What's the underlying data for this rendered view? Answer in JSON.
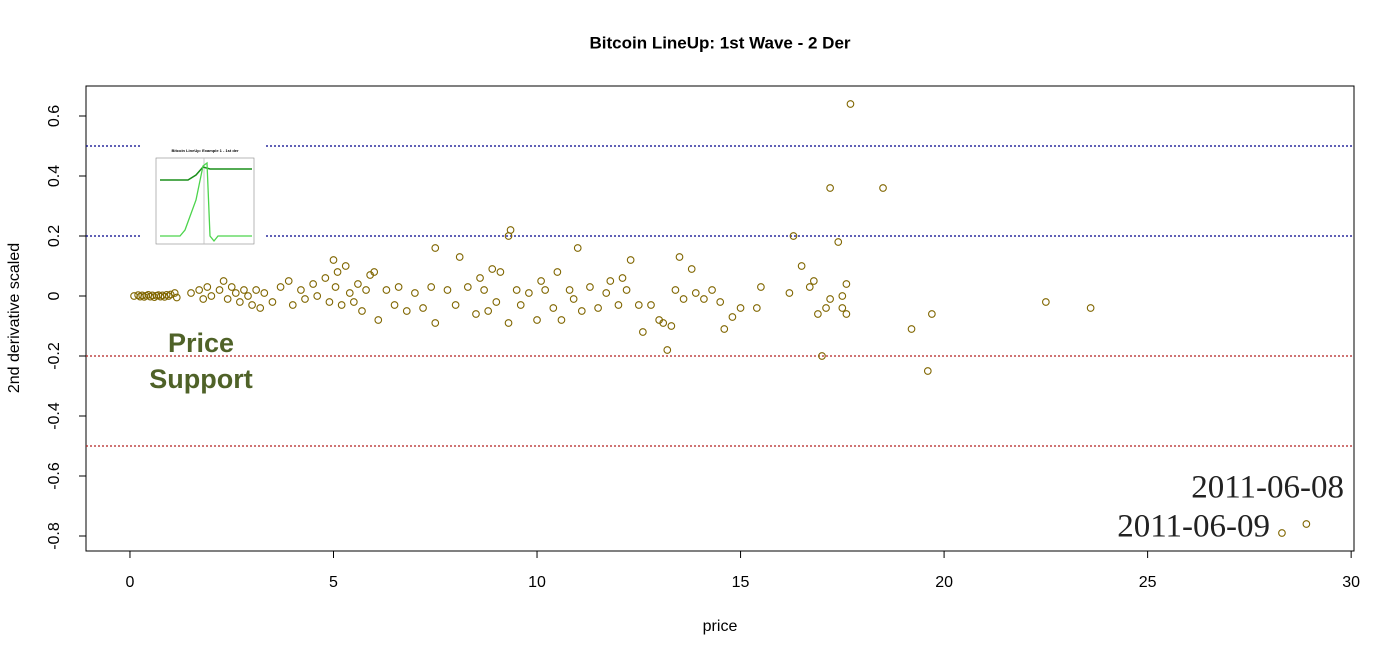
{
  "chart_data": {
    "type": "scatter",
    "title": "Bitcoin LineUp: 1st Wave - 2 Der",
    "x_label": "price",
    "y_label": "2nd derivative scaled",
    "xlim": [
      -1.08,
      30.07
    ],
    "ylim": [
      -0.85,
      0.7
    ],
    "xticks": [
      0,
      5,
      10,
      15,
      20,
      25,
      30
    ],
    "yticks": [
      -0.8,
      -0.6,
      -0.4,
      -0.2,
      0.0,
      0.2,
      0.4,
      0.6
    ],
    "hlines": [
      {
        "value": 0.5,
        "color": "#00008b"
      },
      {
        "value": 0.2,
        "color": "#00008b"
      },
      {
        "value": -0.2,
        "color": "#b22222"
      },
      {
        "value": -0.5,
        "color": "#b22222"
      }
    ],
    "annotations": [
      {
        "text": "Price",
        "color": "#4f6228"
      },
      {
        "text": "Support",
        "color": "#4f6228"
      },
      {
        "text": "2011-06-08",
        "color": "#222222"
      },
      {
        "text": "2011-06-09",
        "color": "#222222"
      }
    ],
    "inset_title": "Bitcoin LineUp: Example 1 - 1st der",
    "series": [
      {
        "name": "2nd derivative",
        "color": "#806600",
        "x": [
          0.1,
          0.2,
          0.25,
          0.3,
          0.35,
          0.4,
          0.45,
          0.5,
          0.55,
          0.6,
          0.65,
          0.7,
          0.75,
          0.8,
          0.85,
          0.9,
          0.95,
          1.0,
          1.1,
          1.15,
          1.5,
          1.7,
          1.8,
          1.9,
          2.0,
          2.2,
          2.3,
          2.4,
          2.5,
          2.6,
          2.7,
          2.8,
          2.9,
          3.0,
          3.1,
          3.2,
          3.3,
          3.5,
          3.7,
          3.9,
          4.0,
          4.2,
          4.3,
          4.5,
          4.6,
          4.8,
          4.9,
          5.0,
          5.05,
          5.1,
          5.2,
          5.3,
          5.4,
          5.5,
          5.6,
          5.7,
          5.8,
          5.9,
          6.0,
          6.1,
          6.3,
          6.5,
          6.6,
          6.8,
          7.0,
          7.2,
          7.4,
          7.5,
          7.5,
          7.8,
          8.0,
          8.1,
          8.3,
          8.5,
          8.6,
          8.7,
          8.8,
          8.9,
          9.0,
          9.1,
          9.3,
          9.3,
          9.35,
          9.5,
          9.6,
          9.8,
          10.0,
          10.1,
          10.2,
          10.4,
          10.5,
          10.6,
          10.8,
          10.9,
          11.0,
          11.1,
          11.3,
          11.5,
          11.7,
          11.8,
          12.0,
          12.1,
          12.2,
          12.3,
          12.5,
          12.6,
          12.8,
          13.0,
          13.1,
          13.2,
          13.3,
          13.4,
          13.5,
          13.6,
          13.8,
          13.9,
          14.1,
          14.3,
          14.5,
          14.6,
          14.8,
          15.0,
          15.4,
          15.5,
          16.2,
          16.3,
          16.5,
          16.7,
          16.8,
          16.9,
          17.0,
          17.1,
          17.2,
          17.2,
          17.4,
          17.5,
          17.5,
          17.6,
          17.6,
          17.7,
          18.5,
          19.2,
          19.6,
          19.7,
          22.5,
          23.6,
          28.3,
          28.9
        ],
        "values": [
          0,
          0.003,
          -0.002,
          0.002,
          -0.003,
          0.001,
          0.004,
          -0.002,
          0.002,
          -0.004,
          0.001,
          0.003,
          -0.002,
          0.002,
          -0.003,
          0.004,
          0,
          0.005,
          0.01,
          -0.005,
          0.01,
          0.02,
          -0.01,
          0.03,
          0,
          0.02,
          0.05,
          -0.01,
          0.03,
          0.01,
          -0.02,
          0.02,
          0,
          -0.03,
          0.02,
          -0.04,
          0.01,
          -0.02,
          0.03,
          0.05,
          -0.03,
          0.02,
          -0.01,
          0.04,
          0,
          0.06,
          -0.02,
          0.12,
          0.03,
          0.08,
          -0.03,
          0.1,
          0.01,
          -0.02,
          0.04,
          -0.05,
          0.02,
          0.07,
          0.08,
          -0.08,
          0.02,
          -0.03,
          0.03,
          -0.05,
          0.01,
          -0.04,
          0.03,
          -0.09,
          0.16,
          0.02,
          -0.03,
          0.13,
          0.03,
          -0.06,
          0.06,
          0.02,
          -0.05,
          0.09,
          -0.02,
          0.08,
          -0.09,
          0.2,
          0.22,
          0.02,
          -0.03,
          0.01,
          -0.08,
          0.05,
          0.02,
          -0.04,
          0.08,
          -0.08,
          0.02,
          -0.01,
          0.16,
          -0.05,
          0.03,
          -0.04,
          0.01,
          0.05,
          -0.03,
          0.06,
          0.02,
          0.12,
          -0.03,
          -0.12,
          -0.03,
          -0.08,
          -0.09,
          -0.18,
          -0.1,
          0.02,
          0.13,
          -0.01,
          0.09,
          0.01,
          -0.01,
          0.02,
          -0.02,
          -0.11,
          -0.07,
          -0.04,
          -0.04,
          0.03,
          0.01,
          0.2,
          0.1,
          0.03,
          0.05,
          -0.06,
          -0.2,
          -0.04,
          0.36,
          -0.01,
          0.18,
          0,
          -0.04,
          -0.06,
          0.04,
          0.64,
          0.36,
          -0.11,
          -0.25,
          -0.06,
          -0.02,
          -0.04,
          -0.79,
          -0.76
        ]
      }
    ]
  }
}
